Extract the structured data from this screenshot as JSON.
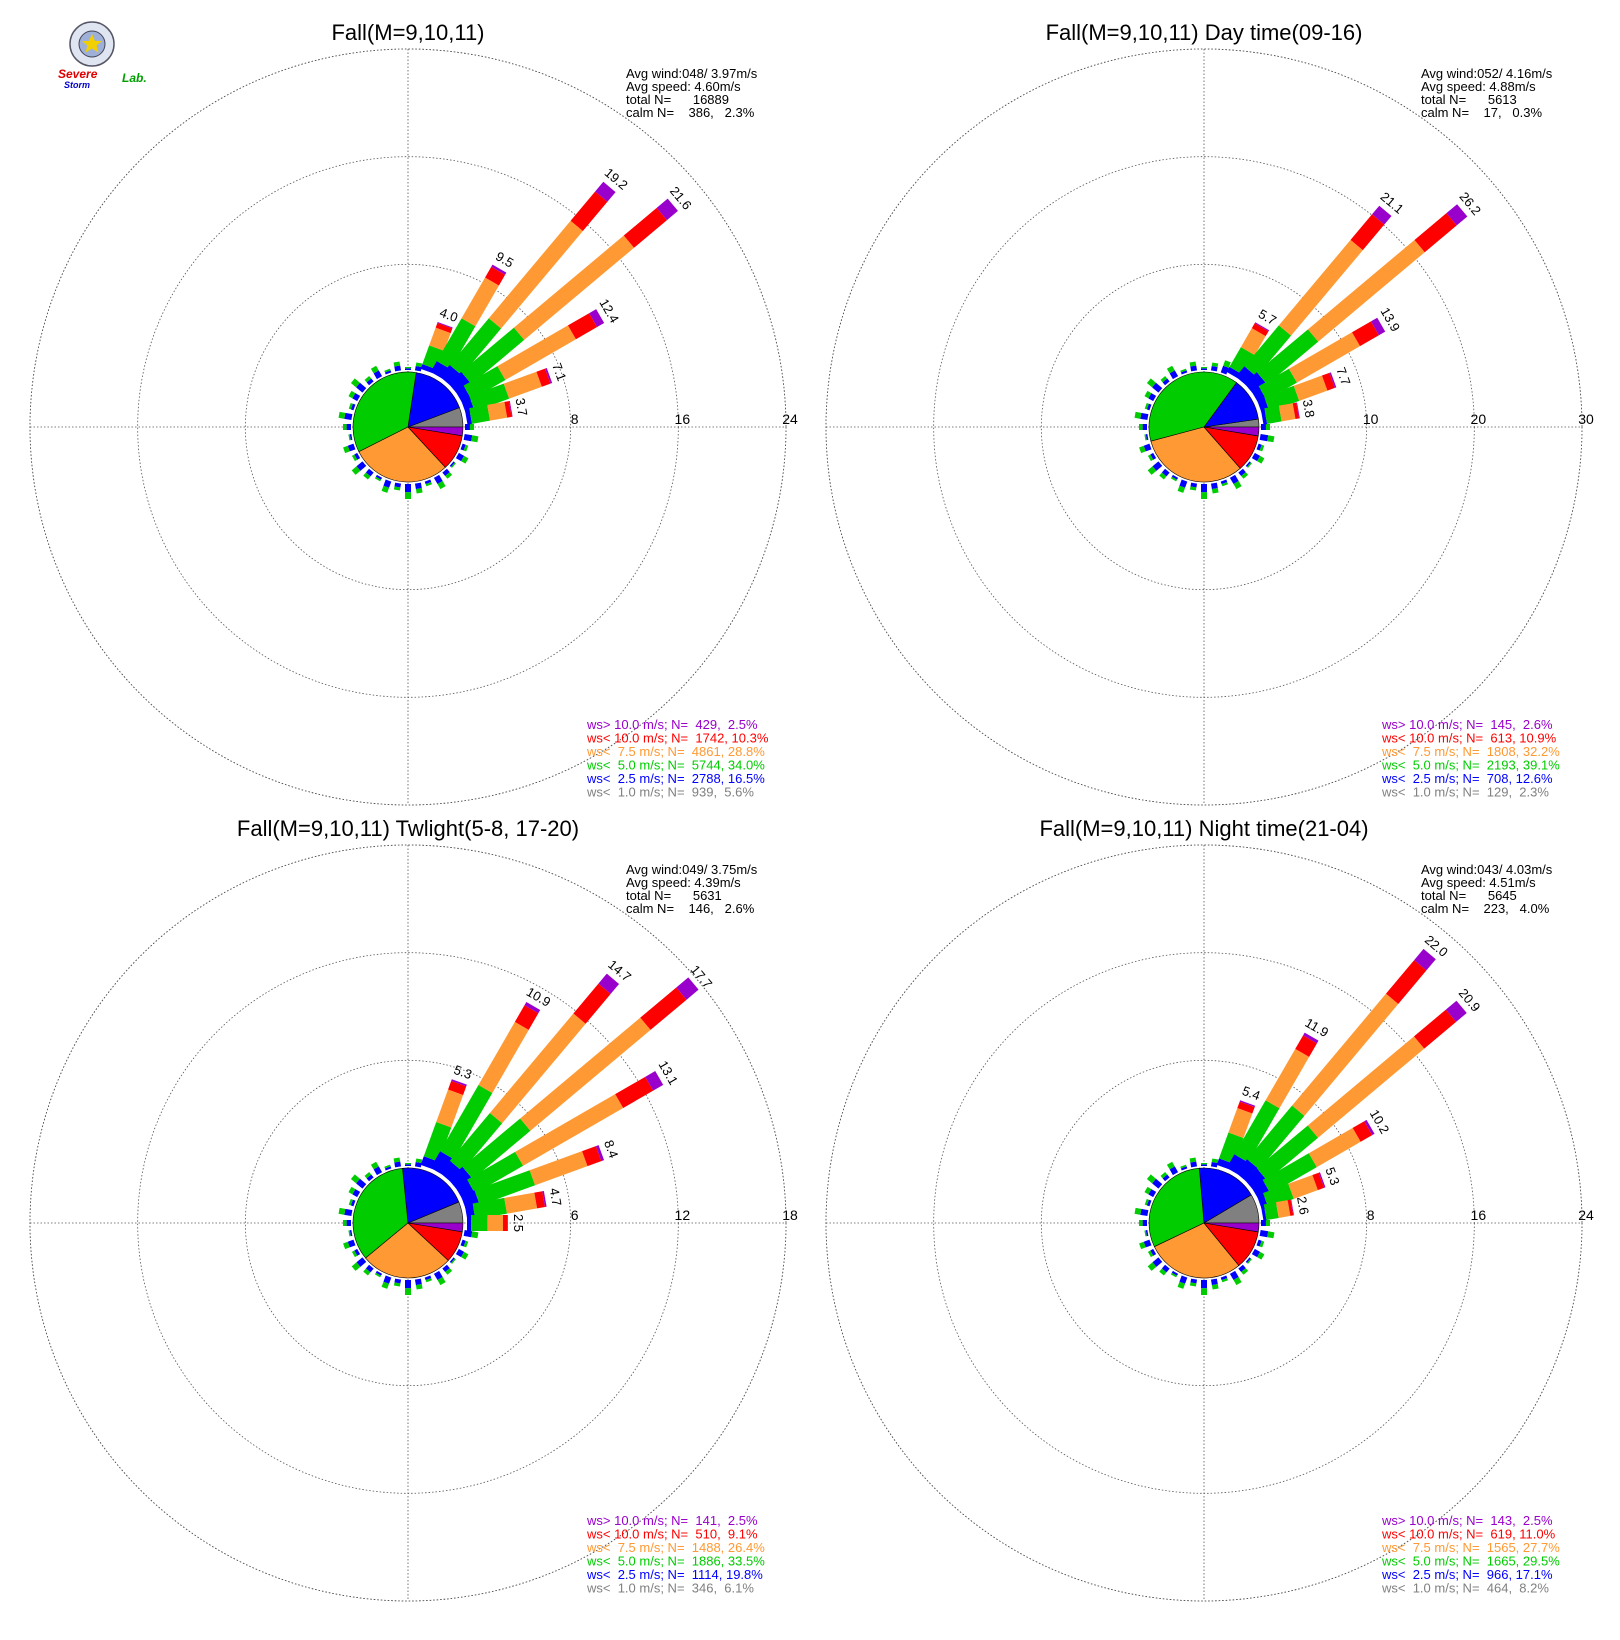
{
  "logo": {
    "text_parts": [
      "Severe",
      "Storm",
      "Lab."
    ]
  },
  "colors": {
    "gt10": "#9900cc",
    "lt10": "#ff0000",
    "lt75": "#ff9933",
    "lt5": "#00cc00",
    "lt25": "#0000ff",
    "lt1": "#808080"
  },
  "legend_labels": {
    "gt10": "ws> 10.0 m/s; N=",
    "lt10": "ws< 10.0 m/s; N=",
    "lt75": "ws<  7.5 m/s; N=",
    "lt5": "ws<  5.0 m/s; N=",
    "lt25": "ws<  2.5 m/s; N=",
    "lt1": "ws<  1.0 m/s; N="
  },
  "info_labels": {
    "avg_wind": "Avg wind:",
    "avg_speed": "Avg speed:",
    "total": "total N=",
    "calm": "calm N="
  },
  "chart_data": [
    {
      "type": "wind-rose",
      "title": "Fall(M=9,10,11)",
      "avg_wind": "048/ 3.97m/s",
      "avg_speed": "4.60m/s",
      "total_n": "16889",
      "calm": "386,   2.3%",
      "rings": [
        "8",
        "16",
        "24"
      ],
      "ring_max": 24,
      "legend": {
        "gt10": "429,  2.5%",
        "lt10": "1742, 10.3%",
        "lt75": "4861, 28.8%",
        "lt5": "5744, 34.0%",
        "lt25": "2788, 16.5%",
        "lt1": "939,  5.6%"
      },
      "pie": {
        "lt1": 5.6,
        "lt25": 16.5,
        "lt5": 34.0,
        "lt75": 28.8,
        "lt10": 10.3,
        "gt10": 2.5
      },
      "bars": [
        {
          "dir": 20,
          "total": 4.0,
          "label": "4.0"
        },
        {
          "dir": 30,
          "total": 9.5,
          "label": "9.5"
        },
        {
          "dir": 40,
          "total": 19.2,
          "label": "19.2"
        },
        {
          "dir": 50,
          "total": 21.6,
          "label": "21.6"
        },
        {
          "dir": 60,
          "total": 12.4,
          "label": "12.4"
        },
        {
          "dir": 70,
          "total": 7.1,
          "label": "7.1"
        },
        {
          "dir": 80,
          "total": 3.7,
          "label": "3.7"
        }
      ]
    },
    {
      "type": "wind-rose",
      "title": "Fall(M=9,10,11) Day time(09-16)",
      "avg_wind": "052/ 4.16m/s",
      "avg_speed": "4.88m/s",
      "total_n": "5613",
      "calm": "17,   0.3%",
      "rings": [
        "10",
        "20",
        "30"
      ],
      "ring_max": 30,
      "legend": {
        "gt10": "145,  2.6%",
        "lt10": "613, 10.9%",
        "lt75": "1808, 32.2%",
        "lt5": "2193, 39.1%",
        "lt25": "708, 12.6%",
        "lt1": "129,  2.3%"
      },
      "pie": {
        "lt1": 2.3,
        "lt25": 12.6,
        "lt5": 39.1,
        "lt75": 32.2,
        "lt10": 10.9,
        "gt10": 2.6
      },
      "bars": [
        {
          "dir": 30,
          "total": 5.7,
          "label": "5.7"
        },
        {
          "dir": 40,
          "total": 21.1,
          "label": "21.1"
        },
        {
          "dir": 50,
          "total": 26.2,
          "label": "26.2"
        },
        {
          "dir": 60,
          "total": 13.9,
          "label": "13.9"
        },
        {
          "dir": 70,
          "total": 7.7,
          "label": "7.7"
        },
        {
          "dir": 80,
          "total": 3.8,
          "label": "3.8"
        }
      ]
    },
    {
      "type": "wind-rose",
      "title": "Fall(M=9,10,11) Twlight(5-8, 17-20)",
      "avg_wind": "049/ 3.75m/s",
      "avg_speed": "4.39m/s",
      "total_n": "5631",
      "calm": "146,   2.6%",
      "rings": [
        "6",
        "12",
        "18"
      ],
      "ring_max": 18,
      "legend": {
        "gt10": "141,  2.5%",
        "lt10": "510,  9.1%",
        "lt75": "1488, 26.4%",
        "lt5": "1886, 33.5%",
        "lt25": "1114, 19.8%",
        "lt1": "346,  6.1%"
      },
      "pie": {
        "lt1": 6.1,
        "lt25": 19.8,
        "lt5": 33.5,
        "lt75": 26.4,
        "lt10": 9.1,
        "gt10": 2.5
      },
      "bars": [
        {
          "dir": 20,
          "total": 5.3,
          "label": "5.3"
        },
        {
          "dir": 30,
          "total": 10.9,
          "label": "10.9"
        },
        {
          "dir": 40,
          "total": 14.7,
          "label": "14.7"
        },
        {
          "dir": 50,
          "total": 17.7,
          "label": "17.7"
        },
        {
          "dir": 60,
          "total": 13.1,
          "label": "13.1"
        },
        {
          "dir": 70,
          "total": 8.4,
          "label": "8.4"
        },
        {
          "dir": 80,
          "total": 4.7,
          "label": "4.7"
        },
        {
          "dir": 90,
          "total": 2.5,
          "label": "2.5"
        }
      ]
    },
    {
      "type": "wind-rose",
      "title": "Fall(M=9,10,11) Night time(21-04)",
      "avg_wind": "043/ 4.03m/s",
      "avg_speed": "4.51m/s",
      "total_n": "5645",
      "calm": "223,   4.0%",
      "rings": [
        "8",
        "16",
        "24"
      ],
      "ring_max": 24,
      "legend": {
        "gt10": "143,  2.5%",
        "lt10": "619, 11.0%",
        "lt75": "1565, 27.7%",
        "lt5": "1665, 29.5%",
        "lt25": "966, 17.1%",
        "lt1": "464,  8.2%"
      },
      "pie": {
        "lt1": 8.2,
        "lt25": 17.1,
        "lt5": 29.5,
        "lt75": 27.7,
        "lt10": 11.0,
        "gt10": 2.5
      },
      "bars": [
        {
          "dir": 20,
          "total": 5.4,
          "label": "5.4"
        },
        {
          "dir": 30,
          "total": 11.9,
          "label": "11.9"
        },
        {
          "dir": 40,
          "total": 22.0,
          "label": "22.0"
        },
        {
          "dir": 50,
          "total": 20.9,
          "label": "20.9"
        },
        {
          "dir": 60,
          "total": 10.2,
          "label": "10.2"
        },
        {
          "dir": 70,
          "total": 5.3,
          "label": "5.3"
        },
        {
          "dir": 80,
          "total": 2.6,
          "label": "2.6"
        }
      ]
    }
  ]
}
